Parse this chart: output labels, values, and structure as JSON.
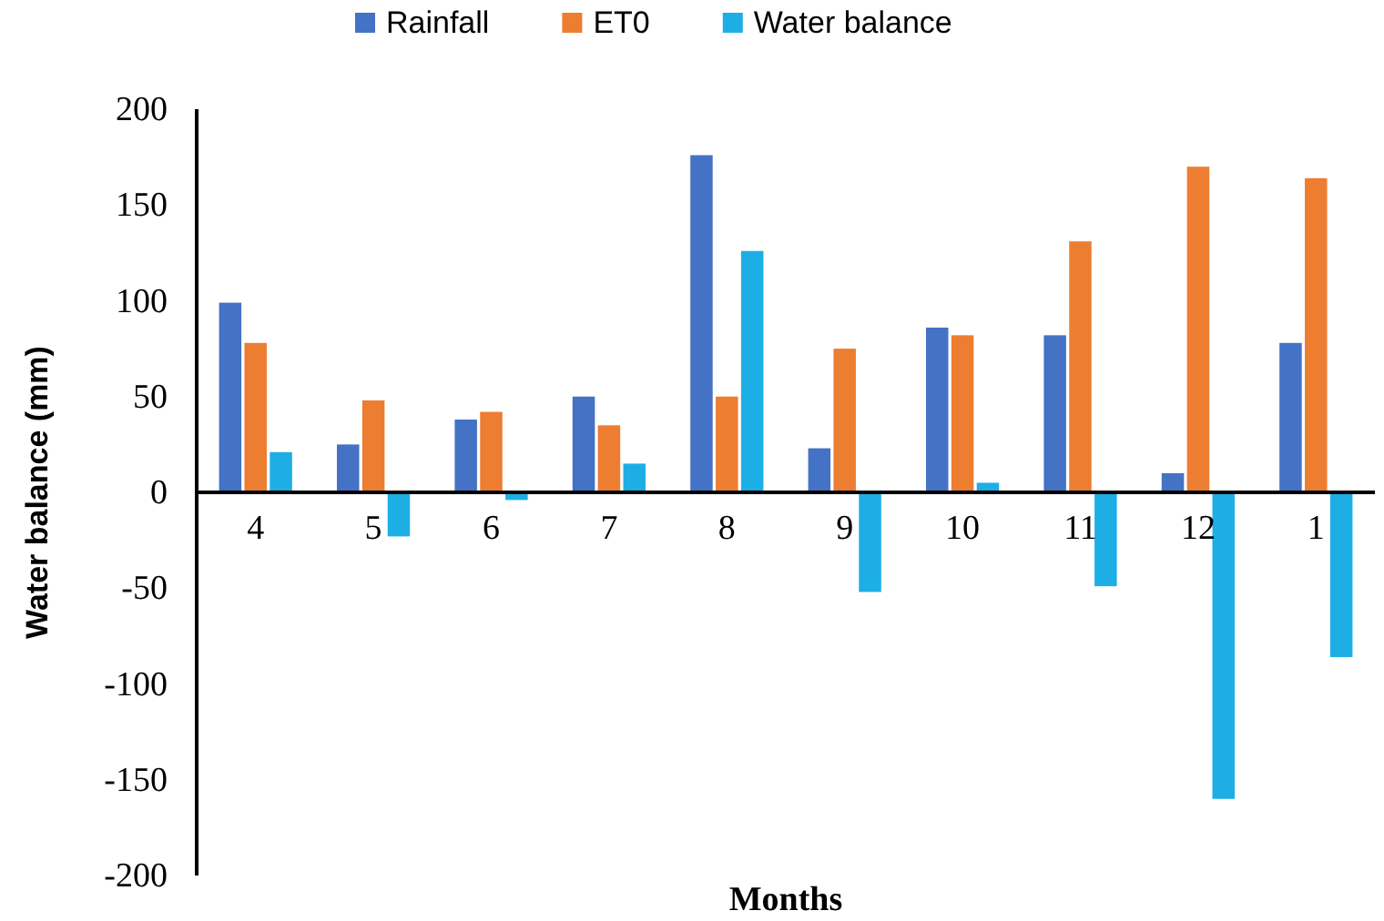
{
  "chart_data": {
    "type": "bar",
    "xlabel": "Months",
    "ylabel": "Water balance (mm)",
    "categories": [
      "4",
      "5",
      "6",
      "7",
      "8",
      "9",
      "10",
      "11",
      "12",
      "1"
    ],
    "series": [
      {
        "name": "Rainfall",
        "color": "#4472c4",
        "values": [
          99,
          25,
          38,
          50,
          176,
          23,
          86,
          82,
          10,
          78
        ]
      },
      {
        "name": "ET0",
        "color": "#ed7d31",
        "values": [
          78,
          48,
          42,
          35,
          50,
          75,
          82,
          131,
          170,
          164
        ]
      },
      {
        "name": "Water balance",
        "color": "#1eaee6",
        "values": [
          21,
          -23,
          -4,
          15,
          126,
          -52,
          5,
          -49,
          -160,
          -86
        ]
      }
    ],
    "ylim": [
      -200,
      200
    ],
    "yticks": [
      -200,
      -150,
      -100,
      -50,
      0,
      50,
      100,
      150,
      200
    ],
    "grid": false,
    "legend": "top"
  }
}
